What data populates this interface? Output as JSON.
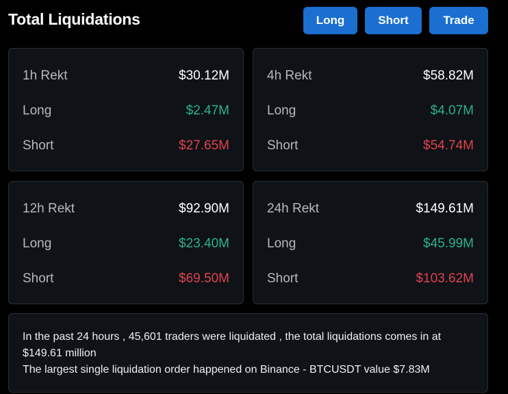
{
  "header": {
    "title": "Total Liquidations",
    "buttons": {
      "long": "Long",
      "short": "Short",
      "trade": "Trade"
    }
  },
  "stats": [
    {
      "period_label": "1h Rekt",
      "total": "$30.12M",
      "long_label": "Long",
      "long": "$2.47M",
      "short_label": "Short",
      "short": "$27.65M"
    },
    {
      "period_label": "4h Rekt",
      "total": "$58.82M",
      "long_label": "Long",
      "long": "$4.07M",
      "short_label": "Short",
      "short": "$54.74M"
    },
    {
      "period_label": "12h Rekt",
      "total": "$92.90M",
      "long_label": "Long",
      "long": "$23.40M",
      "short_label": "Short",
      "short": "$69.50M"
    },
    {
      "period_label": "24h Rekt",
      "total": "$149.61M",
      "long_label": "Long",
      "long": "$45.99M",
      "short_label": "Short",
      "short": "$103.62M"
    }
  ],
  "summary": {
    "line1": "In the past 24 hours , 45,601 traders were liquidated , the total liquidations comes in at $149.61 million",
    "line2": "The largest single liquidation order happened on Binance - BTCUSDT value $7.83M"
  },
  "colors": {
    "accent": "#1a6fd1",
    "long": "#2bb38a",
    "short": "#e0434f"
  }
}
